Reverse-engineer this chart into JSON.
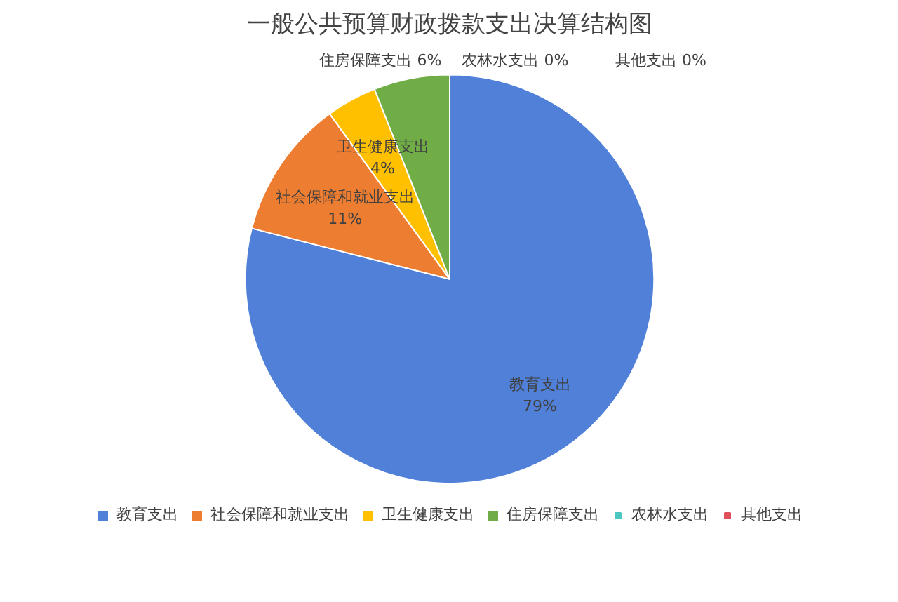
{
  "chart_data": {
    "type": "pie",
    "title": "一般公共预算财政拨款支出决算结构图",
    "categories": [
      "教育支出",
      "社会保障和就业支出",
      "卫生健康支出",
      "住房保障支出",
      "农林水支出",
      "其他支出"
    ],
    "values": [
      79,
      11,
      4,
      6,
      0,
      0
    ],
    "colors": [
      "#5080d8",
      "#ed7d31",
      "#ffc000",
      "#70ad47",
      "#4bc6c0",
      "#e0505a"
    ],
    "value_labels": [
      "79%",
      "11%",
      "4%",
      "6%",
      "0%",
      "0%"
    ],
    "legend": "bottom"
  }
}
